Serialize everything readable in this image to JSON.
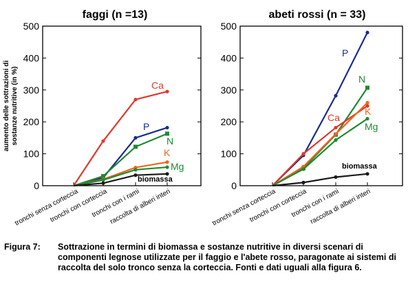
{
  "caption": {
    "label": "Figura 7:",
    "text": "Sottrazione in termini di biomassa e sostanze nutritive in diversi scenari di componenti legnose utilizzate per il faggio e l'abete rosso, paragonate ai sistemi di raccolta del solo tronco senza la corteccia. Fonti e dati uguali alla figura 6."
  },
  "chart_data": [
    {
      "type": "line",
      "title": "faggi (n =13)",
      "ylabel": "aumento delle sottrazioni di sostanze nutritive (in %)",
      "xlabel": "",
      "ylim": [
        0,
        500
      ],
      "yticks": [
        "0",
        "100",
        "200",
        "300",
        "400",
        "500"
      ],
      "categories": [
        "tronchi senza corteccia",
        "tronchi con corteccia",
        "tronchi con i rami",
        "raccolta di alberi interi"
      ],
      "series": [
        {
          "name": "Ca",
          "color": "#e0382c",
          "values": [
            0,
            140,
            270,
            295
          ]
        },
        {
          "name": "P",
          "color": "#1a2c8c",
          "values": [
            0,
            25,
            150,
            182
          ]
        },
        {
          "name": "N",
          "color": "#1e8a33",
          "values": [
            0,
            30,
            122,
            163
          ]
        },
        {
          "name": "K",
          "color": "#f0661a",
          "values": [
            0,
            20,
            57,
            74
          ]
        },
        {
          "name": "Mg",
          "color": "#1e8a33",
          "values": [
            0,
            18,
            50,
            58
          ]
        },
        {
          "name": "biomassa",
          "color": "#1a1a1a",
          "values": [
            0,
            8,
            33,
            37
          ]
        }
      ]
    },
    {
      "type": "line",
      "title": "abeti rossi (n = 33)",
      "ylabel": "",
      "xlabel": "",
      "ylim": [
        0,
        500
      ],
      "yticks": [
        "0",
        "100",
        "200",
        "300",
        "400",
        "500"
      ],
      "categories": [
        "tronchi senza corteccia",
        "tronchi con corteccia",
        "tronchi con i rami",
        "raccolta di alberi interi"
      ],
      "series": [
        {
          "name": "P",
          "color": "#1a2c8c",
          "values": [
            0,
            95,
            282,
            480
          ]
        },
        {
          "name": "N",
          "color": "#1e8a33",
          "values": [
            0,
            55,
            160,
            307
          ]
        },
        {
          "name": "Ca",
          "color": "#e0382c",
          "values": [
            0,
            100,
            182,
            250
          ]
        },
        {
          "name": "K",
          "color": "#f0661a",
          "values": [
            0,
            60,
            162,
            260
          ]
        },
        {
          "name": "Mg",
          "color": "#1e8a33",
          "values": [
            0,
            52,
            143,
            210
          ]
        },
        {
          "name": "biomassa",
          "color": "#1a1a1a",
          "values": [
            0,
            10,
            27,
            37
          ]
        }
      ]
    }
  ]
}
